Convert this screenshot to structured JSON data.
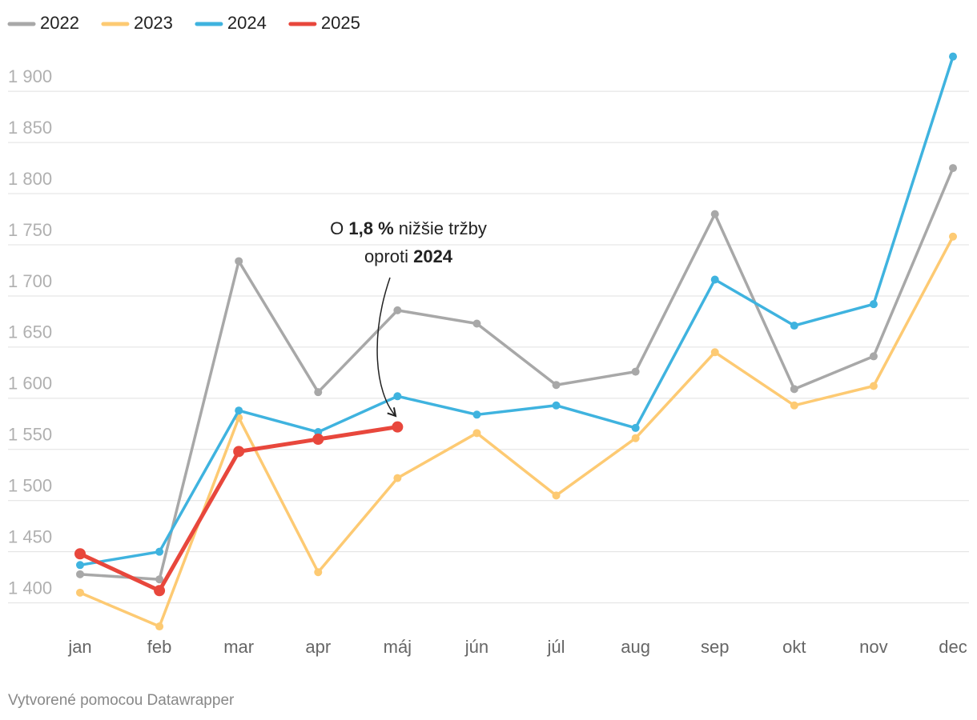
{
  "chart_data": {
    "type": "line",
    "categories": [
      "jan",
      "feb",
      "mar",
      "apr",
      "máj",
      "jún",
      "júl",
      "aug",
      "sep",
      "okt",
      "nov",
      "dec"
    ],
    "series": [
      {
        "name": "2022",
        "color": "#a8a8a8",
        "values": [
          1428,
          1423,
          1734,
          1606,
          1686,
          1673,
          1613,
          1626,
          1780,
          1609,
          1641,
          1825
        ]
      },
      {
        "name": "2023",
        "color": "#fdca73",
        "values": [
          1410,
          1377,
          1581,
          1430,
          1522,
          1566,
          1505,
          1561,
          1645,
          1593,
          1612,
          1758
        ]
      },
      {
        "name": "2024",
        "color": "#3fb3df",
        "values": [
          1437,
          1450,
          1588,
          1567,
          1602,
          1584,
          1593,
          1571,
          1716,
          1671,
          1692,
          1934
        ]
      },
      {
        "name": "2025",
        "color": "#e8473c",
        "values": [
          1448,
          1412,
          1548,
          1560,
          1572,
          null,
          null,
          null,
          null,
          null,
          null,
          null
        ]
      }
    ],
    "ylim": [
      1370,
      1940
    ],
    "yticks": [
      {
        "value": 1400,
        "label": "1 400"
      },
      {
        "value": 1450,
        "label": "1 450"
      },
      {
        "value": 1500,
        "label": "1 500"
      },
      {
        "value": 1550,
        "label": "1 550"
      },
      {
        "value": 1600,
        "label": "1 600"
      },
      {
        "value": 1650,
        "label": "1 650"
      },
      {
        "value": 1700,
        "label": "1 700"
      },
      {
        "value": 1750,
        "label": "1 750"
      },
      {
        "value": 1800,
        "label": "1 800"
      },
      {
        "value": 1850,
        "label": "1 850"
      },
      {
        "value": 1900,
        "label": "1 900"
      }
    ],
    "grid": true,
    "legend": "top-left",
    "annotation": [
      [
        "O ",
        "1,8 %",
        " nižšie tržby"
      ],
      [
        "oproti ",
        "2024"
      ]
    ],
    "footer": "Vytvorené pomocou Datawrapper"
  }
}
